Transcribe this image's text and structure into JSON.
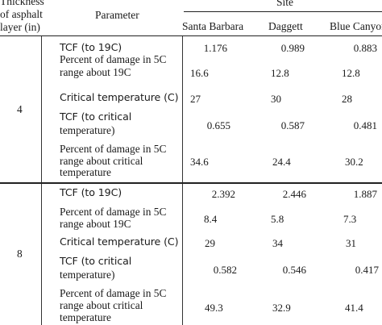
{
  "header": {
    "thickness_line1": "Thickness",
    "thickness_line2": "of asphalt",
    "thickness_line3": "layer (in)",
    "parameter": "Parameter",
    "site": "Site",
    "sites": [
      "Santa Barbara",
      "Daggett",
      "Blue Canyon"
    ]
  },
  "groups": [
    {
      "thickness": "4",
      "rows": [
        {
          "param_lines": [
            "TCF (to 19C)"
          ],
          "values": [
            "1.176",
            "0.989",
            "0.883"
          ]
        },
        {
          "param_lines": [
            "Percent of damage in 5C",
            "range about 19C"
          ],
          "values": [
            "16.6",
            "12.8",
            "12.8"
          ]
        },
        {
          "param_lines": [
            "Critical temperature (C)"
          ],
          "values": [
            "27",
            "30",
            "28"
          ]
        },
        {
          "param_lines": [
            "TCF (to critical",
            "temperature)"
          ],
          "values": [
            "0.655",
            "0.587",
            "0.481"
          ]
        },
        {
          "param_lines": [
            "Percent of damage in 5C",
            "range about critical",
            "temperature"
          ],
          "values": [
            "34.6",
            "24.4",
            "30.2"
          ]
        }
      ]
    },
    {
      "thickness": "8",
      "rows": [
        {
          "param_lines": [
            "TCF (to 19C)"
          ],
          "values": [
            "2.392",
            "2.446",
            "1.887"
          ]
        },
        {
          "param_lines": [
            "Percent of damage in 5C",
            "range about 19C"
          ],
          "values": [
            "8.4",
            "5.8",
            "7.3"
          ]
        },
        {
          "param_lines": [
            "Critical temperature (C)"
          ],
          "values": [
            "29",
            "34",
            "31"
          ]
        },
        {
          "param_lines": [
            "TCF (to critical",
            "temperature)"
          ],
          "values": [
            "0.582",
            "0.546",
            "0.417"
          ]
        },
        {
          "param_lines": [
            "Percent of damage in 5C",
            "range about critical",
            "temperature"
          ],
          "values": [
            "49.3",
            "32.9",
            "41.4"
          ]
        }
      ]
    }
  ]
}
